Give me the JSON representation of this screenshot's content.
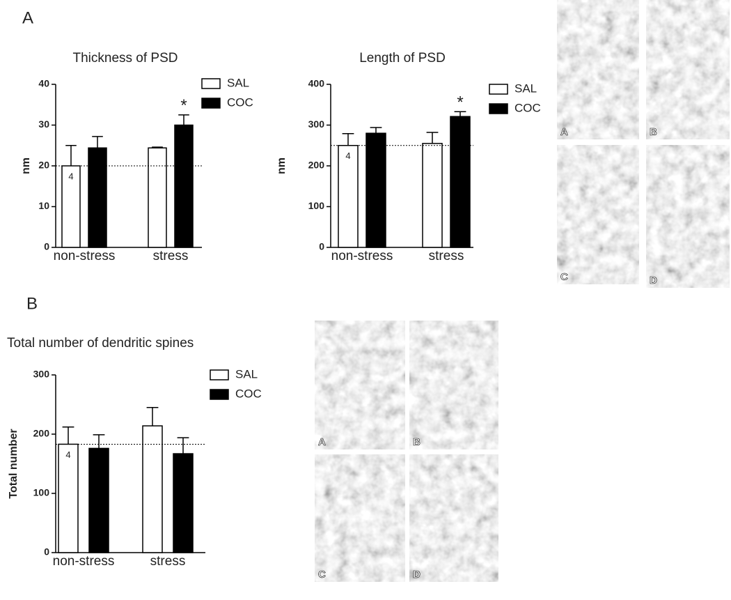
{
  "panel_labels": [
    "A",
    "B"
  ],
  "chart_data": [
    {
      "type": "bar",
      "title": "Thickness of PSD",
      "ylabel": "nm",
      "categories": [
        "non-stress",
        "stress"
      ],
      "series": [
        {
          "name": "SAL",
          "color": "#ffffff",
          "values": [
            20,
            24.4
          ],
          "errors": [
            5,
            0.2
          ],
          "inside_labels": [
            "4",
            null
          ]
        },
        {
          "name": "COC",
          "color": "#000000",
          "values": [
            24.4,
            30
          ],
          "errors": [
            2.8,
            2.5
          ],
          "significance": [
            null,
            "*"
          ]
        }
      ],
      "ylim": [
        0,
        40
      ],
      "yticks": [
        0,
        10,
        20,
        30,
        40
      ],
      "reference_line": true
    },
    {
      "type": "bar",
      "title": "Length of PSD",
      "ylabel": "nm",
      "categories": [
        "non-stress",
        "stress"
      ],
      "series": [
        {
          "name": "SAL",
          "color": "#ffffff",
          "values": [
            250,
            255
          ],
          "errors": [
            29,
            27
          ],
          "inside_labels": [
            "4",
            null
          ]
        },
        {
          "name": "COC",
          "color": "#000000",
          "values": [
            280,
            321
          ],
          "errors": [
            14,
            12
          ],
          "significance": [
            null,
            "*"
          ]
        }
      ],
      "ylim": [
        0,
        400
      ],
      "yticks": [
        0,
        100,
        200,
        300,
        400
      ],
      "reference_line": true
    },
    {
      "type": "bar",
      "title": "Total number of dendritic spines",
      "ylabel": "Total number",
      "categories": [
        "non-stress",
        "stress"
      ],
      "series": [
        {
          "name": "SAL",
          "color": "#ffffff",
          "values": [
            183,
            214
          ],
          "errors": [
            29,
            31
          ],
          "inside_labels": [
            "4",
            null
          ]
        },
        {
          "name": "COC",
          "color": "#000000",
          "values": [
            176,
            167
          ],
          "errors": [
            23,
            27
          ]
        }
      ],
      "ylim": [
        0,
        300
      ],
      "yticks": [
        0,
        100,
        200,
        300
      ],
      "reference_line": true
    }
  ],
  "micrographs": [
    {
      "labels": [
        "A",
        "B",
        "C",
        "D"
      ]
    },
    {
      "labels": [
        "A",
        "B",
        "C",
        "D"
      ]
    }
  ]
}
